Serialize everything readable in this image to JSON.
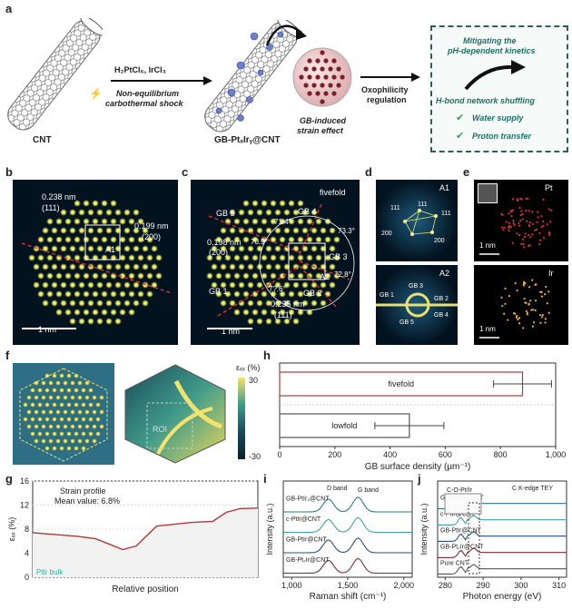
{
  "labels": {
    "a": "a",
    "b": "b",
    "c": "c",
    "d": "d",
    "e": "e",
    "f": "f",
    "g": "g",
    "h": "h",
    "i": "i",
    "j": "j"
  },
  "panel_a": {
    "cnt": "CNT",
    "reagents": "H₂PtCl₆, IrCl₃",
    "shock_line1": "Non-equilibrium",
    "shock_line2": "carbothermal shock",
    "product": "GB-PtₓIrᵧ@CNT",
    "gb_line1": "GB-induced",
    "gb_line2": "strain effect",
    "oxo_line1": "Oxophilicity",
    "oxo_line2": "regulation",
    "box_line1": "Mitigating the",
    "box_line2": "pH-dependent kinetics",
    "hbond": "H-bond network shuffling",
    "check1": "Water supply",
    "check2": "Proton transfer"
  },
  "panel_b": {
    "d1": "0.238 nm",
    "h1": "(111)",
    "d2": "0.199 nm",
    "h2": "(200)",
    "box": "A1",
    "scale": "1 nm"
  },
  "panel_c": {
    "title": "fivefold",
    "gb1": "GB 1",
    "gb2": "GB 2",
    "gb3": "GB 3",
    "gb4": "GB 4",
    "gb5": "GB 5",
    "a1": "71.4°",
    "a2": "73.3°",
    "a3": "70.9°",
    "a4": "72.8°",
    "a5": "7?.6°",
    "d1": "0.198 nm",
    "h1": "(200)",
    "d2": "0.235 nm",
    "h2": "(111)",
    "box": "A2",
    "scale": "1 nm"
  },
  "panel_d": {
    "a1": "A1",
    "a2": "A2",
    "s1": "111",
    "s2": "111",
    "s3": "111",
    "s4": "200",
    "s5": "200",
    "g1": "GB 1",
    "g2": "GB 2",
    "g3": "GB 3",
    "g4": "GB 4",
    "g5": "GB 5"
  },
  "panel_e": {
    "pt": "Pt",
    "ir": "Ir",
    "scale1": "1 nm",
    "scale2": "1 nm"
  },
  "panel_f": {
    "legend_title": "εₓₓ (%)",
    "max": "30",
    "zero": "0",
    "min": "-30",
    "roi": "ROI"
  },
  "chart_h": {
    "type": "bar",
    "categories": [
      "fivefold",
      "lowfold"
    ],
    "values": [
      880,
      470
    ],
    "errors": [
      105,
      125
    ],
    "xlabel": "GB surface density (μm⁻¹)",
    "xlim": [
      0,
      1000
    ],
    "xticks": [
      "0",
      "200",
      "400",
      "600",
      "800",
      "1,000"
    ],
    "colors": [
      "#b03a3a",
      "#555555"
    ]
  },
  "chart_g": {
    "type": "line",
    "ylabel": "εₓₓ (%)",
    "xlabel": "Relative position",
    "ylim": [
      0,
      16
    ],
    "yticks": [
      "0",
      "4",
      "8",
      "12",
      "16"
    ],
    "note1": "Strain profile",
    "note2": "Mean value: 6.8%",
    "bulk": "PtIr bulk",
    "line_color": "#b03a3a"
  },
  "chart_i": {
    "type": "line",
    "xlabel": "Raman shift (cm⁻¹)",
    "ylabel": "Intensity (a.u.)",
    "xticks": [
      "1,000",
      "1,500",
      "2,000"
    ],
    "dband": "D band",
    "gband": "G band",
    "series": [
      "GB-PtIr₂@CNT",
      "c-PtIr@CNT",
      "GB-PtIr@CNT",
      "GB-Pt₂Ir@CNT"
    ],
    "colors": [
      "#2b7a8c",
      "#3fa3a0",
      "#2b4f7a",
      "#7a2b3a"
    ]
  },
  "chart_j": {
    "type": "line",
    "xlabel": "Photon energy (eV)",
    "ylabel": "Intensity (a.u.)",
    "xticks": [
      "280",
      "290",
      "300",
      "310"
    ],
    "title": "C K-edge TEY",
    "inset": "C-O-Pt/Ir",
    "series": [
      "GB-PtIr₂@CNT",
      "c-PtIr@CNT",
      "GB-PtIr@CNT",
      "GB-Pt₂Ir@CNT",
      "Pure CNT"
    ],
    "colors": [
      "#2b7a8c",
      "#3fa3a0",
      "#2b4f7a",
      "#7a2b3a",
      "#555555"
    ]
  }
}
